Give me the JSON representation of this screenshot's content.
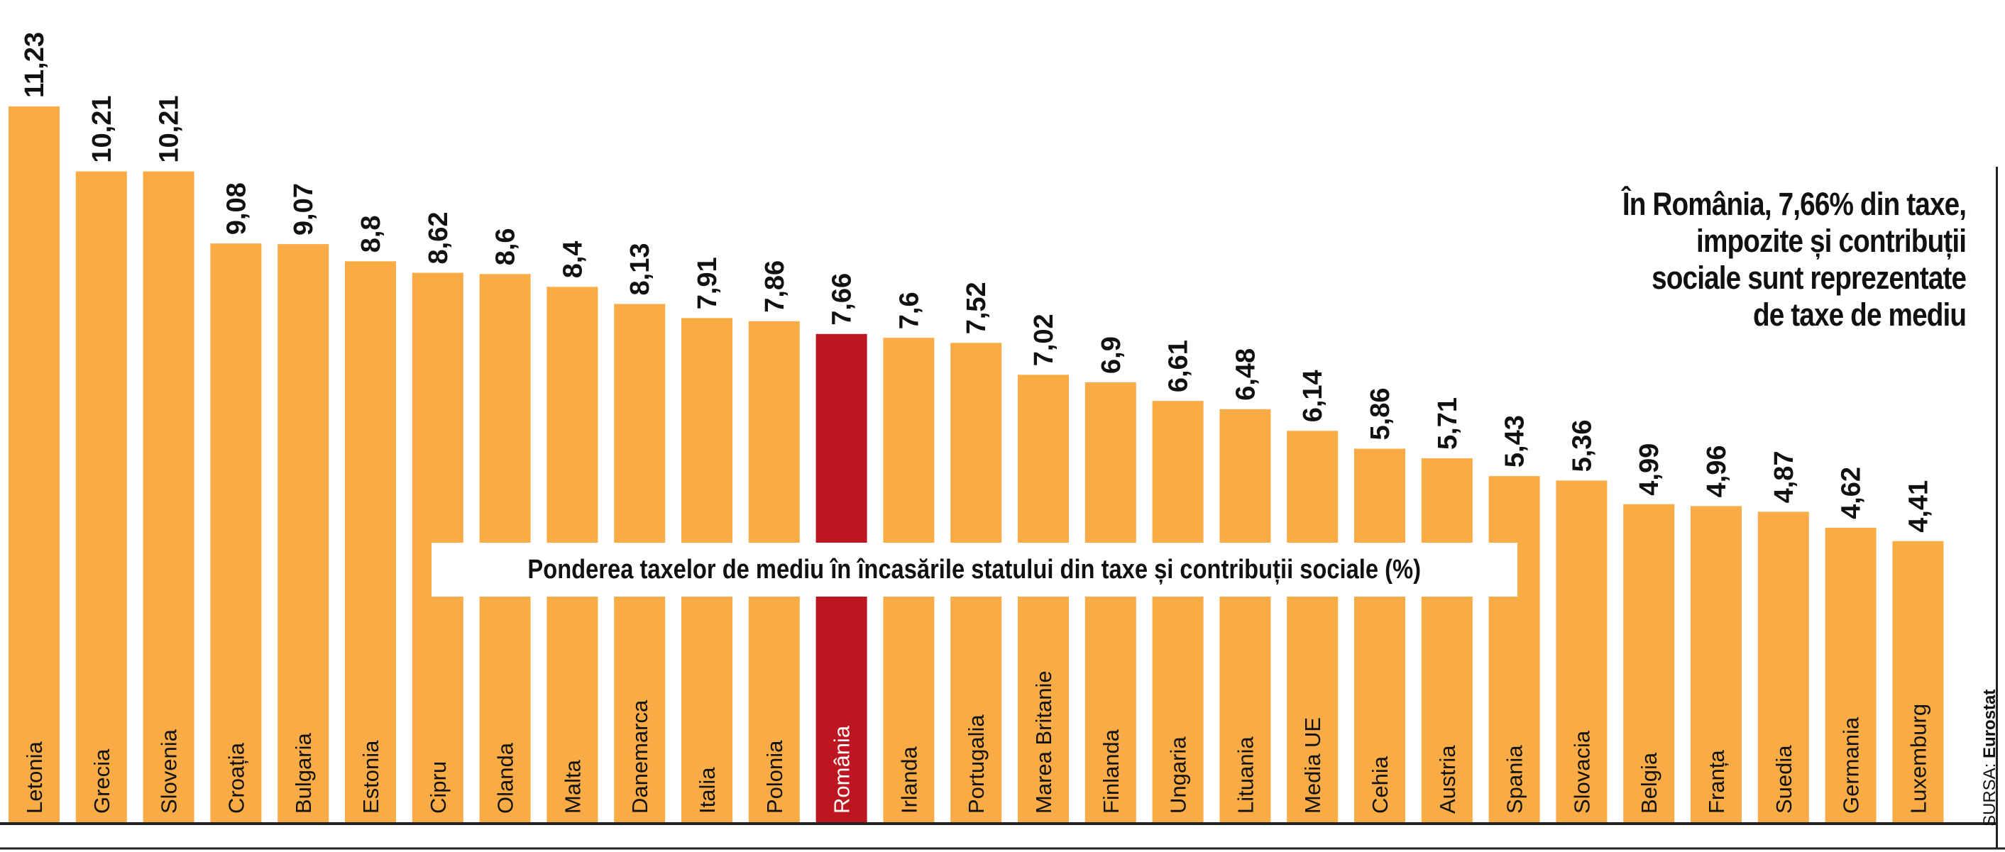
{
  "headline": {
    "lines": [
      "În România, 7,66% din taxe,",
      "impozite și contribuții",
      "sociale sunt reprezentate",
      "de taxe de mediu"
    ]
  },
  "subtitle": "Ponderea taxelor de mediu în încasările statului din taxe și contribuții sociale (%)",
  "source": {
    "label": "SURSA: ",
    "value": "Eurostat"
  },
  "colors": {
    "bar": "#F9AC45",
    "highlight": "#BD1620",
    "text": "#111111",
    "baseline": "#222222"
  },
  "chart_data": {
    "type": "bar",
    "orientation": "vertical",
    "categories": [
      "Letonia",
      "Grecia",
      "Slovenia",
      "Croația",
      "Bulgaria",
      "Estonia",
      "Cipru",
      "Olanda",
      "Malta",
      "Danemarca",
      "Italia",
      "Polonia",
      "România",
      "Irlanda",
      "Portugalia",
      "Marea Britanie",
      "Finlanda",
      "Ungaria",
      "Lituania",
      "Media UE",
      "Cehia",
      "Austria",
      "Spania",
      "Slovacia",
      "Belgia",
      "Franța",
      "Suedia",
      "Germania",
      "Luxemburg"
    ],
    "values": [
      11.23,
      10.21,
      10.21,
      9.08,
      9.07,
      8.8,
      8.62,
      8.6,
      8.4,
      8.13,
      7.91,
      7.86,
      7.66,
      7.6,
      7.52,
      7.02,
      6.9,
      6.61,
      6.48,
      6.14,
      5.86,
      5.71,
      5.43,
      5.36,
      4.99,
      4.96,
      4.87,
      4.62,
      4.41
    ],
    "value_labels": [
      "11,23",
      "10,21",
      "10,21",
      "9,08",
      "9,07",
      "8,8",
      "8,62",
      "8,6",
      "8,4",
      "8,13",
      "7,91",
      "7,86",
      "7,66",
      "7,6",
      "7,52",
      "7,02",
      "6,9",
      "6,61",
      "6,48",
      "6,14",
      "5,86",
      "5,71",
      "5,43",
      "5,36",
      "4,99",
      "4,96",
      "4,87",
      "4,62",
      "4,41"
    ],
    "highlight": "România",
    "title": "Ponderea taxelor de mediu în încasările statului din taxe și contribuții sociale (%)",
    "xlabel": "",
    "ylabel": "",
    "ylim": [
      0,
      11.23
    ],
    "grid": false,
    "legend": "none"
  }
}
